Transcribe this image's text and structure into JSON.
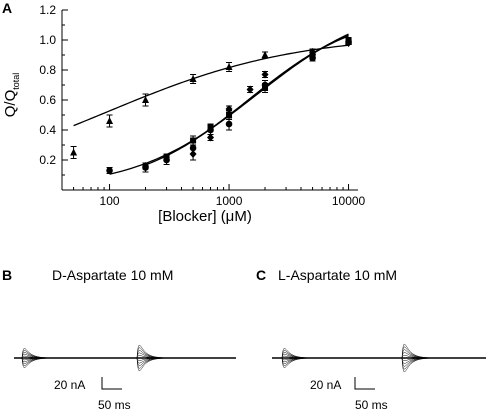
{
  "panels": {
    "a": "A",
    "b": "B",
    "c": "C"
  },
  "chart_data": {
    "type": "scatter",
    "xlabel": "[Blocker] (μM)",
    "ylabel_main": "Q/Q",
    "ylabel_sub": "total",
    "xscale": "log",
    "xlim": [
      40,
      12000
    ],
    "ylim": [
      0,
      1.2
    ],
    "xticks": [
      100,
      1000,
      10000
    ],
    "xtick_labels": [
      "100",
      "1000",
      "10000"
    ],
    "yticks": [
      0.2,
      0.4,
      0.6,
      0.8,
      1.0,
      1.2
    ],
    "ytick_labels": [
      "0.2",
      "0.4",
      "0.6",
      "0.8",
      "1.0",
      "1.2"
    ],
    "grid": false,
    "series": [
      {
        "marker": "triangle",
        "points": [
          {
            "x": 50,
            "y": 0.25,
            "err": 0.04
          },
          {
            "x": 100,
            "y": 0.46,
            "err": 0.04
          },
          {
            "x": 200,
            "y": 0.6,
            "err": 0.04
          },
          {
            "x": 500,
            "y": 0.74,
            "err": 0.03
          },
          {
            "x": 1000,
            "y": 0.82,
            "err": 0.03
          },
          {
            "x": 2000,
            "y": 0.9,
            "err": 0.02
          },
          {
            "x": 5000,
            "y": 0.92,
            "err": 0.02
          },
          {
            "x": 10000,
            "y": 0.99,
            "err": 0.01
          }
        ],
        "fit": {
          "ic50": 95,
          "n": 0.55,
          "top": 1.04
        }
      },
      {
        "marker": "circle",
        "points": [
          {
            "x": 100,
            "y": 0.13,
            "err": 0.02
          },
          {
            "x": 200,
            "y": 0.15,
            "err": 0.03
          },
          {
            "x": 300,
            "y": 0.2,
            "err": 0.03
          },
          {
            "x": 500,
            "y": 0.28,
            "err": 0.04
          },
          {
            "x": 700,
            "y": 0.4,
            "err": 0.03
          },
          {
            "x": 1000,
            "y": 0.44,
            "err": 0.04
          },
          {
            "x": 2000,
            "y": 0.7,
            "err": 0.03
          },
          {
            "x": 5000,
            "y": 0.88,
            "err": 0.02
          },
          {
            "x": 10000,
            "y": 0.99,
            "err": 0.01
          }
        ],
        "fit": {
          "ic50": 1700,
          "n": 0.85,
          "top": 1.27
        }
      },
      {
        "marker": "square",
        "points": [
          {
            "x": 300,
            "y": 0.22,
            "err": 0.02
          },
          {
            "x": 500,
            "y": 0.33,
            "err": 0.03
          },
          {
            "x": 700,
            "y": 0.42,
            "err": 0.02
          },
          {
            "x": 1000,
            "y": 0.5,
            "err": 0.03
          },
          {
            "x": 2000,
            "y": 0.68,
            "err": 0.03
          },
          {
            "x": 5000,
            "y": 0.9,
            "err": 0.02
          },
          {
            "x": 10000,
            "y": 1.0,
            "err": 0.01
          }
        ],
        "fit": {
          "ic50": 1500,
          "n": 0.9,
          "top": 1.22
        }
      },
      {
        "marker": "diamond",
        "points": [
          {
            "x": 200,
            "y": 0.16,
            "err": 0.02
          },
          {
            "x": 500,
            "y": 0.24,
            "err": 0.04
          },
          {
            "x": 700,
            "y": 0.35,
            "err": 0.02
          },
          {
            "x": 1000,
            "y": 0.54,
            "err": 0.02
          },
          {
            "x": 1500,
            "y": 0.67,
            "err": 0.02
          },
          {
            "x": 2000,
            "y": 0.77,
            "err": 0.02
          },
          {
            "x": 5000,
            "y": 0.92,
            "err": 0.02
          },
          {
            "x": 10000,
            "y": 0.98,
            "err": 0.01
          }
        ],
        "fit": {
          "ic50": 1450,
          "n": 0.92,
          "top": 1.2
        }
      }
    ]
  },
  "traces": {
    "b": {
      "title": "D-Aspartate 10 mM",
      "scale_current": "20 nA",
      "scale_time": "50 ms"
    },
    "c": {
      "title": "L-Aspartate 10 mM",
      "scale_current": "20 nA",
      "scale_time": "50 ms"
    }
  }
}
